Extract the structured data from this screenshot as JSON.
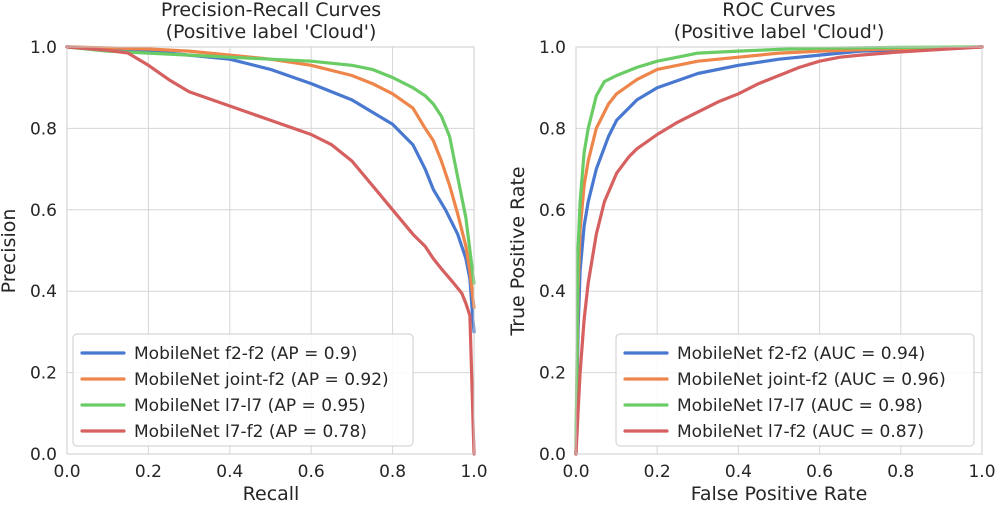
{
  "chart_data": [
    {
      "id": "pr",
      "type": "line",
      "title_lines": [
        "Precision-Recall Curves",
        "(Positive label 'Cloud')"
      ],
      "xlabel": "Recall",
      "ylabel": "Precision",
      "xlim": [
        0.0,
        1.0
      ],
      "ylim": [
        0.0,
        1.0
      ],
      "xticks": [
        "0.0",
        "0.2",
        "0.4",
        "0.6",
        "0.8",
        "1.0"
      ],
      "yticks": [
        "0.0",
        "0.2",
        "0.4",
        "0.6",
        "0.8",
        "1.0"
      ],
      "grid": true,
      "legend_position": "lower-left",
      "series": [
        {
          "name": "MobileNet f2-f2 (AP = 0.9)",
          "color": "#4878d0",
          "points": [
            [
              0.0,
              1.0
            ],
            [
              0.1,
              0.997
            ],
            [
              0.2,
              0.99
            ],
            [
              0.3,
              0.98
            ],
            [
              0.4,
              0.97
            ],
            [
              0.5,
              0.945
            ],
            [
              0.6,
              0.91
            ],
            [
              0.7,
              0.87
            ],
            [
              0.75,
              0.84
            ],
            [
              0.8,
              0.81
            ],
            [
              0.85,
              0.76
            ],
            [
              0.88,
              0.7
            ],
            [
              0.9,
              0.65
            ],
            [
              0.93,
              0.6
            ],
            [
              0.96,
              0.54
            ],
            [
              0.98,
              0.48
            ],
            [
              0.99,
              0.43
            ],
            [
              0.995,
              0.36
            ],
            [
              1.0,
              0.3
            ]
          ]
        },
        {
          "name": "MobileNet joint-f2 (AP = 0.92)",
          "color": "#ee854a",
          "points": [
            [
              0.0,
              1.0
            ],
            [
              0.1,
              0.998
            ],
            [
              0.2,
              0.995
            ],
            [
              0.3,
              0.99
            ],
            [
              0.4,
              0.98
            ],
            [
              0.5,
              0.97
            ],
            [
              0.6,
              0.955
            ],
            [
              0.7,
              0.93
            ],
            [
              0.75,
              0.91
            ],
            [
              0.8,
              0.885
            ],
            [
              0.85,
              0.85
            ],
            [
              0.88,
              0.8
            ],
            [
              0.9,
              0.77
            ],
            [
              0.92,
              0.72
            ],
            [
              0.94,
              0.66
            ],
            [
              0.96,
              0.59
            ],
            [
              0.98,
              0.51
            ],
            [
              0.99,
              0.45
            ],
            [
              1.0,
              0.36
            ]
          ]
        },
        {
          "name": "MobileNet l7-l7 (AP = 0.95)",
          "color": "#6acc64",
          "points": [
            [
              0.0,
              1.0
            ],
            [
              0.1,
              0.99
            ],
            [
              0.2,
              0.985
            ],
            [
              0.3,
              0.98
            ],
            [
              0.4,
              0.975
            ],
            [
              0.5,
              0.97
            ],
            [
              0.6,
              0.965
            ],
            [
              0.7,
              0.955
            ],
            [
              0.75,
              0.945
            ],
            [
              0.8,
              0.925
            ],
            [
              0.85,
              0.9
            ],
            [
              0.88,
              0.88
            ],
            [
              0.9,
              0.86
            ],
            [
              0.92,
              0.83
            ],
            [
              0.94,
              0.78
            ],
            [
              0.96,
              0.68
            ],
            [
              0.98,
              0.58
            ],
            [
              0.99,
              0.5
            ],
            [
              1.0,
              0.42
            ]
          ]
        },
        {
          "name": "MobileNet l7-f2 (AP = 0.78)",
          "color": "#d65f5f",
          "points": [
            [
              0.0,
              1.0
            ],
            [
              0.1,
              0.992
            ],
            [
              0.15,
              0.985
            ],
            [
              0.2,
              0.955
            ],
            [
              0.25,
              0.92
            ],
            [
              0.3,
              0.89
            ],
            [
              0.4,
              0.855
            ],
            [
              0.5,
              0.82
            ],
            [
              0.6,
              0.785
            ],
            [
              0.65,
              0.76
            ],
            [
              0.7,
              0.72
            ],
            [
              0.75,
              0.66
            ],
            [
              0.8,
              0.6
            ],
            [
              0.85,
              0.54
            ],
            [
              0.88,
              0.51
            ],
            [
              0.9,
              0.48
            ],
            [
              0.92,
              0.455
            ],
            [
              0.95,
              0.42
            ],
            [
              0.97,
              0.395
            ],
            [
              0.98,
              0.37
            ],
            [
              0.99,
              0.34
            ],
            [
              1.0,
              0.0
            ]
          ]
        }
      ]
    },
    {
      "id": "roc",
      "type": "line",
      "title_lines": [
        "ROC Curves",
        "(Positive label 'Cloud')"
      ],
      "xlabel": "False Positive Rate",
      "ylabel": "True Positive Rate",
      "xlim": [
        0.0,
        1.0
      ],
      "ylim": [
        0.0,
        1.0
      ],
      "xticks": [
        "0.0",
        "0.2",
        "0.4",
        "0.6",
        "0.8",
        "1.0"
      ],
      "yticks": [
        "0.0",
        "0.2",
        "0.4",
        "0.6",
        "0.8",
        "1.0"
      ],
      "grid": true,
      "legend_position": "lower-right",
      "series": [
        {
          "name": "MobileNet f2-f2 (AUC = 0.94)",
          "color": "#4878d0",
          "points": [
            [
              0.0,
              0.0
            ],
            [
              0.005,
              0.3
            ],
            [
              0.01,
              0.45
            ],
            [
              0.02,
              0.56
            ],
            [
              0.03,
              0.62
            ],
            [
              0.05,
              0.7
            ],
            [
              0.08,
              0.78
            ],
            [
              0.1,
              0.82
            ],
            [
              0.15,
              0.87
            ],
            [
              0.2,
              0.9
            ],
            [
              0.3,
              0.935
            ],
            [
              0.4,
              0.955
            ],
            [
              0.5,
              0.97
            ],
            [
              0.6,
              0.98
            ],
            [
              0.7,
              0.99
            ],
            [
              0.8,
              0.993
            ],
            [
              0.9,
              0.997
            ],
            [
              1.0,
              1.0
            ]
          ]
        },
        {
          "name": "MobileNet joint-f2 (AUC = 0.96)",
          "color": "#ee854a",
          "points": [
            [
              0.0,
              0.0
            ],
            [
              0.005,
              0.4
            ],
            [
              0.01,
              0.55
            ],
            [
              0.02,
              0.66
            ],
            [
              0.03,
              0.72
            ],
            [
              0.05,
              0.8
            ],
            [
              0.08,
              0.86
            ],
            [
              0.1,
              0.885
            ],
            [
              0.15,
              0.92
            ],
            [
              0.2,
              0.945
            ],
            [
              0.3,
              0.965
            ],
            [
              0.4,
              0.975
            ],
            [
              0.5,
              0.985
            ],
            [
              0.6,
              0.99
            ],
            [
              0.7,
              0.993
            ],
            [
              0.8,
              0.996
            ],
            [
              0.9,
              0.998
            ],
            [
              1.0,
              1.0
            ]
          ]
        },
        {
          "name": "MobileNet l7-l7 (AUC = 0.98)",
          "color": "#6acc64",
          "points": [
            [
              0.0,
              0.0
            ],
            [
              0.005,
              0.5
            ],
            [
              0.01,
              0.62
            ],
            [
              0.02,
              0.74
            ],
            [
              0.03,
              0.8
            ],
            [
              0.05,
              0.88
            ],
            [
              0.07,
              0.915
            ],
            [
              0.1,
              0.93
            ],
            [
              0.15,
              0.95
            ],
            [
              0.2,
              0.965
            ],
            [
              0.25,
              0.975
            ],
            [
              0.3,
              0.985
            ],
            [
              0.4,
              0.99
            ],
            [
              0.5,
              0.994
            ],
            [
              0.6,
              0.997
            ],
            [
              0.8,
              0.999
            ],
            [
              1.0,
              1.0
            ]
          ]
        },
        {
          "name": "MobileNet l7-f2 (AUC = 0.87)",
          "color": "#d65f5f",
          "points": [
            [
              0.0,
              0.0
            ],
            [
              0.005,
              0.1
            ],
            [
              0.01,
              0.2
            ],
            [
              0.02,
              0.33
            ],
            [
              0.03,
              0.42
            ],
            [
              0.05,
              0.54
            ],
            [
              0.07,
              0.62
            ],
            [
              0.1,
              0.69
            ],
            [
              0.13,
              0.73
            ],
            [
              0.15,
              0.75
            ],
            [
              0.2,
              0.785
            ],
            [
              0.25,
              0.815
            ],
            [
              0.3,
              0.84
            ],
            [
              0.35,
              0.865
            ],
            [
              0.4,
              0.885
            ],
            [
              0.45,
              0.91
            ],
            [
              0.5,
              0.93
            ],
            [
              0.55,
              0.95
            ],
            [
              0.6,
              0.965
            ],
            [
              0.65,
              0.975
            ],
            [
              0.7,
              0.98
            ],
            [
              0.8,
              0.988
            ],
            [
              0.9,
              0.994
            ],
            [
              1.0,
              1.0
            ]
          ]
        }
      ]
    }
  ]
}
